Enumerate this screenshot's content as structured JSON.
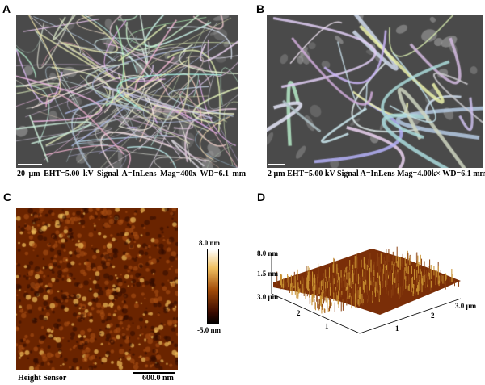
{
  "panels": {
    "a": {
      "label": "A",
      "caption": "20 µm   EHT=5.00 kV   Signal A=InLens   Mag=400x   WD=6.1 mm"
    },
    "b": {
      "label": "B",
      "caption": "2 µm  EHT=5.00 kV  Signal A=InLens  Mag=4.00k×  WD=6.1 mm"
    },
    "c": {
      "label": "C",
      "caption": "Height Sensor",
      "scale_bar": "600.0 nm",
      "colorbar_max": "8.0 nm",
      "colorbar_min": "-5.0 nm"
    },
    "d": {
      "label": "D",
      "z_max": "8.0 nm",
      "z_mid": "1.5 nm",
      "y_axis_max": "3.0 µm",
      "x_axis_max": "3.0 µm",
      "y_ticks": [
        "2",
        "1"
      ],
      "x_ticks": [
        "1",
        "2"
      ]
    }
  },
  "colors": {
    "afm_dark": "#2a0800",
    "afm_mid": "#8a3a08",
    "afm_bright": "#f0c060"
  }
}
